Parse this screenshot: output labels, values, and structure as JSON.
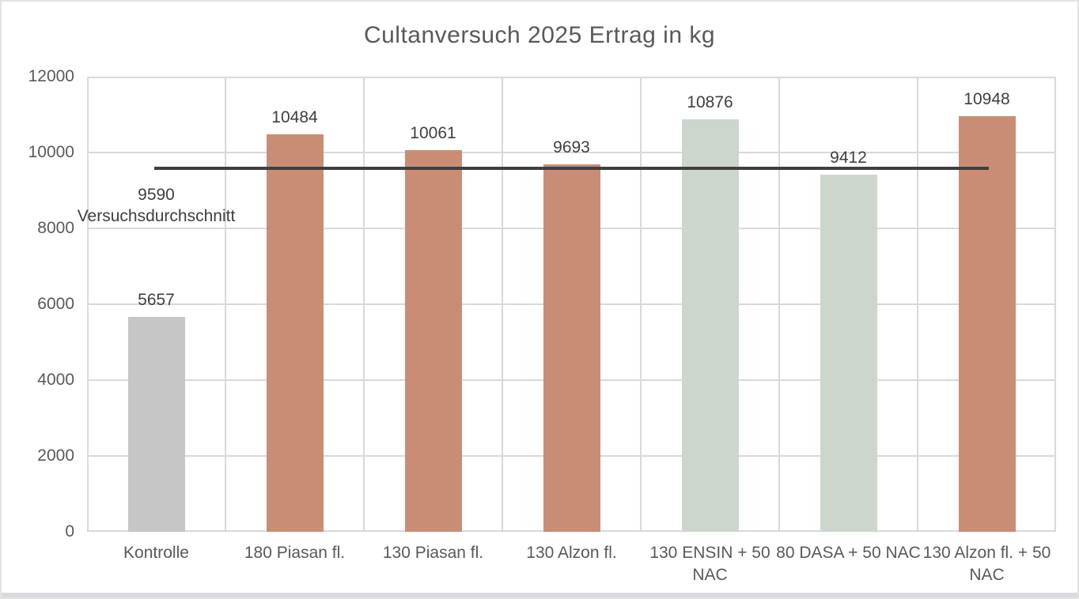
{
  "title": "Cultanversuch 2025 Ertrag in kg",
  "colors": {
    "control_bar": "#c6c6c6",
    "treatment_bar": "#c98d76",
    "nac_bar": "#cdd6cd",
    "average_line": "#3f3f3f",
    "gridline": "#d9d9d9",
    "axis_text": "#595959",
    "value_text": "#3f3f3f"
  },
  "chart_data": {
    "type": "bar",
    "title": "Cultanversuch 2025 Ertrag in kg",
    "categories": [
      "Kontrolle",
      "180 Piasan fl.",
      "130 Piasan fl.",
      "130 Alzon fl.",
      "130 ENSIN + 50 NAC",
      "80 DASA + 50 NAC",
      "130 Alzon fl. + 50 NAC"
    ],
    "values": [
      5657,
      10484,
      10061,
      9693,
      10876,
      9412,
      10948
    ],
    "bar_color_roles": [
      "control",
      "treatment",
      "treatment",
      "treatment",
      "nac",
      "nac",
      "treatment"
    ],
    "reference_line": {
      "value": 9590,
      "value_label": "9590",
      "label": "Versuchsdurchschnitt"
    },
    "ylim": [
      0,
      12000
    ],
    "yticks": [
      0,
      2000,
      4000,
      6000,
      8000,
      10000,
      12000
    ],
    "grid": true,
    "legend": "none",
    "xlabel": "",
    "ylabel": ""
  }
}
